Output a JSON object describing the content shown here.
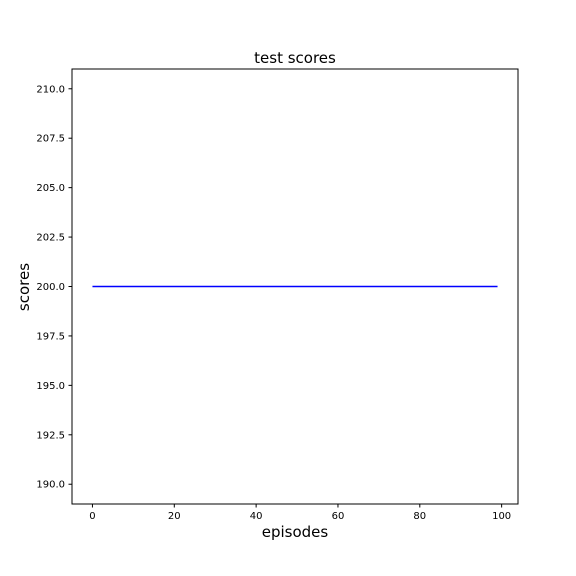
{
  "chart_data": {
    "type": "line",
    "title": "test scores",
    "xlabel": "episodes",
    "ylabel": "scores",
    "xlim": [
      -5,
      104
    ],
    "ylim": [
      189,
      211
    ],
    "xticks": [
      0,
      20,
      40,
      60,
      80,
      100
    ],
    "yticks": [
      190.0,
      192.5,
      195.0,
      197.5,
      200.0,
      202.5,
      205.0,
      207.5,
      210.0
    ],
    "xtick_labels": [
      "0",
      "20",
      "40",
      "60",
      "80",
      "100"
    ],
    "ytick_labels": [
      "190.0",
      "192.5",
      "195.0",
      "197.5",
      "200.0",
      "202.5",
      "205.0",
      "207.5",
      "210.0"
    ],
    "grid": false,
    "series": [
      {
        "color": "#0000ff",
        "x": [
          0,
          99
        ],
        "y": [
          200,
          200
        ]
      }
    ]
  }
}
